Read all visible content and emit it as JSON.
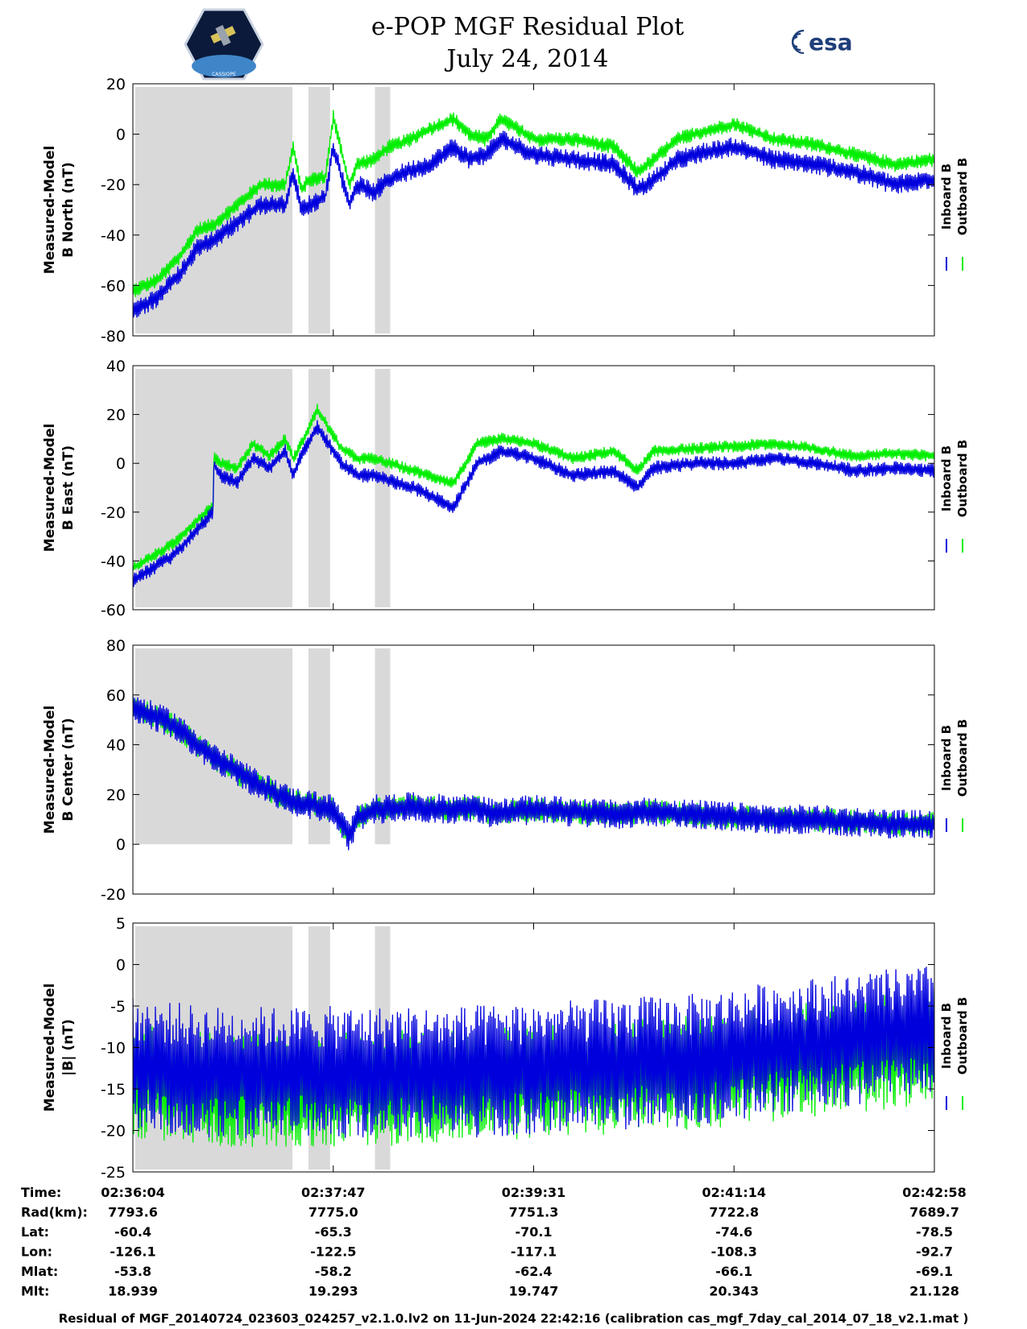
{
  "header": {
    "title_line1": "e-POP MGF Residual Plot",
    "title_line2": "July 24, 2014",
    "logo_left_text": "CASSIOPE",
    "logo_right_text": "esa"
  },
  "colors": {
    "inboard": "#0000dd",
    "outboard": "#00ee00",
    "shade": "#d9d9d9",
    "axis": "#000000"
  },
  "chart_data": [
    {
      "type": "line",
      "ylabel_line1": "Measured-Model",
      "ylabel_line2": "B North (nT)",
      "ylim": [
        -80,
        20
      ],
      "yticks": [
        -80,
        -60,
        -40,
        -20,
        0,
        20
      ],
      "legend": [
        "Inboard B",
        "Outboard B"
      ],
      "grid": false,
      "series": [
        {
          "name": "Inboard B",
          "x": [
            0,
            0.03,
            0.06,
            0.08,
            0.1,
            0.13,
            0.16,
            0.19,
            0.2,
            0.21,
            0.22,
            0.24,
            0.25,
            0.27,
            0.28,
            0.3,
            0.32,
            0.34,
            0.37,
            0.4,
            0.42,
            0.44,
            0.46,
            0.5,
            0.55,
            0.6,
            0.63,
            0.65,
            0.68,
            0.7,
            0.75,
            0.8,
            0.85,
            0.9,
            0.95,
            1.0
          ],
          "y": [
            -70,
            -65,
            -55,
            -45,
            -42,
            -35,
            -28,
            -28,
            -15,
            -30,
            -28,
            -25,
            -5,
            -28,
            -20,
            -23,
            -18,
            -15,
            -12,
            -5,
            -10,
            -8,
            -2,
            -8,
            -10,
            -12,
            -22,
            -18,
            -10,
            -8,
            -5,
            -10,
            -12,
            -15,
            -20,
            -18
          ],
          "amplitude": 4
        },
        {
          "name": "Outboard B",
          "x": [
            0,
            0.03,
            0.06,
            0.08,
            0.1,
            0.13,
            0.16,
            0.19,
            0.2,
            0.21,
            0.22,
            0.24,
            0.25,
            0.27,
            0.28,
            0.3,
            0.32,
            0.34,
            0.37,
            0.4,
            0.42,
            0.44,
            0.46,
            0.5,
            0.55,
            0.6,
            0.63,
            0.65,
            0.68,
            0.7,
            0.75,
            0.8,
            0.85,
            0.9,
            0.95,
            1.0
          ],
          "y": [
            -62,
            -58,
            -48,
            -38,
            -36,
            -28,
            -20,
            -20,
            -5,
            -22,
            -18,
            -17,
            7,
            -20,
            -12,
            -10,
            -5,
            -3,
            2,
            6,
            0,
            -2,
            6,
            -2,
            -2,
            -5,
            -15,
            -10,
            -2,
            0,
            4,
            -2,
            -4,
            -8,
            -12,
            -10
          ],
          "amplitude": 3
        }
      ]
    },
    {
      "type": "line",
      "ylabel_line1": "Measured-Model",
      "ylabel_line2": "B East (nT)",
      "ylim": [
        -60,
        40
      ],
      "yticks": [
        -60,
        -40,
        -20,
        0,
        20,
        40
      ],
      "legend": [
        "Inboard B",
        "Outboard B"
      ],
      "grid": false,
      "series": [
        {
          "name": "Inboard B",
          "x": [
            0,
            0.05,
            0.1,
            0.1,
            0.11,
            0.13,
            0.15,
            0.17,
            0.19,
            0.2,
            0.21,
            0.23,
            0.26,
            0.28,
            0.3,
            0.35,
            0.4,
            0.43,
            0.46,
            0.5,
            0.55,
            0.6,
            0.63,
            0.65,
            0.7,
            0.75,
            0.8,
            0.85,
            0.9,
            0.95,
            1.0
          ],
          "y": [
            -48,
            -38,
            -20,
            0,
            -5,
            -8,
            2,
            -2,
            5,
            -5,
            3,
            15,
            0,
            -5,
            -5,
            -10,
            -18,
            0,
            5,
            2,
            -5,
            -3,
            -10,
            -2,
            0,
            0,
            2,
            0,
            -3,
            -2,
            -3
          ],
          "amplitude": 3
        },
        {
          "name": "Outboard B",
          "x": [
            0,
            0.05,
            0.1,
            0.1,
            0.11,
            0.13,
            0.15,
            0.17,
            0.19,
            0.2,
            0.21,
            0.23,
            0.26,
            0.28,
            0.3,
            0.35,
            0.4,
            0.43,
            0.46,
            0.5,
            0.55,
            0.6,
            0.63,
            0.65,
            0.7,
            0.75,
            0.8,
            0.85,
            0.9,
            0.95,
            1.0
          ],
          "y": [
            -43,
            -33,
            -17,
            3,
            0,
            -2,
            8,
            3,
            10,
            2,
            8,
            22,
            6,
            2,
            2,
            -3,
            -8,
            8,
            10,
            8,
            2,
            5,
            -3,
            5,
            6,
            7,
            8,
            6,
            3,
            4,
            3
          ],
          "amplitude": 2.5
        }
      ]
    },
    {
      "type": "line",
      "ylabel_line1": "Measured-Model",
      "ylabel_line2": "B Center (nT)",
      "ylim": [
        -20,
        80
      ],
      "yticks": [
        -20,
        0,
        20,
        40,
        60,
        80
      ],
      "legend": [
        "Inboard B",
        "Outboard B"
      ],
      "grid": false,
      "series": [
        {
          "name": "Inboard B",
          "x": [
            0,
            0.05,
            0.1,
            0.15,
            0.2,
            0.22,
            0.25,
            0.27,
            0.28,
            0.3,
            0.35,
            0.4,
            0.43,
            0.45,
            0.5,
            0.55,
            0.6,
            0.65,
            0.7,
            0.75,
            0.8,
            0.85,
            0.9,
            0.95,
            1.0
          ],
          "y": [
            55,
            48,
            35,
            25,
            17,
            16,
            14,
            3,
            10,
            14,
            15,
            14,
            15,
            12,
            14,
            13,
            12,
            13,
            12,
            11,
            10,
            10,
            9,
            8,
            8
          ],
          "amplitude": 6
        },
        {
          "name": "Outboard B",
          "x": [
            0,
            0.05,
            0.1,
            0.15,
            0.2,
            0.22,
            0.25,
            0.27,
            0.28,
            0.3,
            0.35,
            0.4,
            0.43,
            0.45,
            0.5,
            0.55,
            0.6,
            0.65,
            0.7,
            0.75,
            0.8,
            0.85,
            0.9,
            0.95,
            1.0
          ],
          "y": [
            55,
            48,
            35,
            25,
            17,
            16,
            14,
            3,
            10,
            14,
            15,
            14,
            15,
            12,
            14,
            13,
            12,
            13,
            12,
            11,
            10,
            10,
            9,
            8,
            8
          ],
          "amplitude": 5
        }
      ]
    },
    {
      "type": "line",
      "ylabel_line1": "Measured-Model",
      "ylabel_line2": "|B| (nT)",
      "ylim": [
        -25,
        5
      ],
      "yticks": [
        -25,
        -20,
        -15,
        -10,
        -5,
        0,
        5
      ],
      "legend": [
        "Inboard B",
        "Outboard B"
      ],
      "grid": false,
      "series": [
        {
          "name": "Inboard B",
          "x": [
            0,
            0.1,
            0.2,
            0.3,
            0.4,
            0.5,
            0.6,
            0.7,
            0.8,
            0.9,
            1.0
          ],
          "y": [
            -12,
            -13,
            -13,
            -13,
            -13,
            -12.5,
            -12,
            -11.5,
            -10,
            -9,
            -8
          ],
          "amplitude": 8
        },
        {
          "name": "Outboard B",
          "x": [
            0,
            0.1,
            0.2,
            0.3,
            0.4,
            0.5,
            0.6,
            0.7,
            0.8,
            0.9,
            1.0
          ],
          "y": [
            -14,
            -15,
            -15,
            -15,
            -14.5,
            -14,
            -13.5,
            -13,
            -12,
            -11,
            -10
          ],
          "amplitude": 7
        }
      ]
    }
  ],
  "shaded_intervals": [
    [
      0,
      0.196
    ],
    [
      0.216,
      0.243
    ],
    [
      0.299,
      0.318
    ]
  ],
  "x_axis": {
    "tick_fractions": [
      0,
      0.25,
      0.5,
      0.75,
      1.0
    ]
  },
  "ephemeris": {
    "row_labels": [
      "Time:",
      "Rad(km):",
      "Lat:",
      "Lon:",
      "Mlat:",
      "Mlt:"
    ],
    "columns": [
      [
        "02:36:04",
        "7793.6",
        "-60.4",
        "-126.1",
        "-53.8",
        "18.939"
      ],
      [
        "02:37:47",
        "7775.0",
        "-65.3",
        "-122.5",
        "-58.2",
        "19.293"
      ],
      [
        "02:39:31",
        "7751.3",
        "-70.1",
        "-117.1",
        "-62.4",
        "19.747"
      ],
      [
        "02:41:14",
        "7722.8",
        "-74.6",
        "-108.3",
        "-66.1",
        "20.343"
      ],
      [
        "02:42:58",
        "7689.7",
        "-78.5",
        "-92.7",
        "-69.1",
        "21.128"
      ]
    ]
  },
  "footer": "Residual of MGF_20140724_023603_024257_v2.1.0.lv2 on 11-Jun-2024 22:42:16 (calibration cas_mgf_7day_cal_2014_07_18_v2.1.mat )"
}
